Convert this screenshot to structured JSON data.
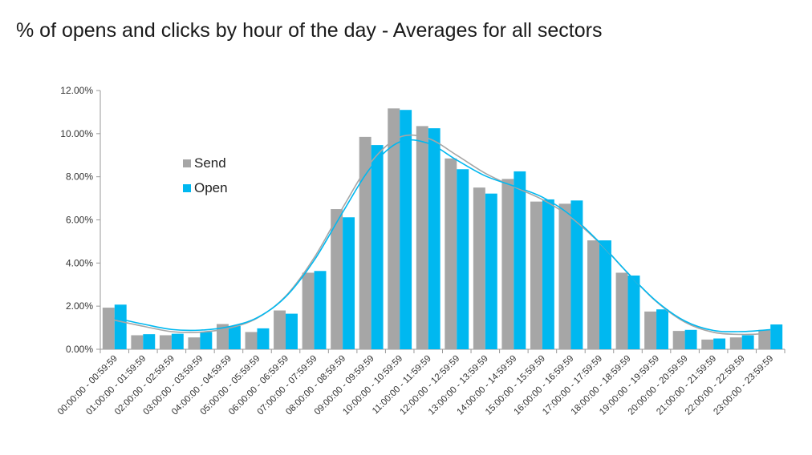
{
  "chart_data": {
    "type": "bar",
    "title": "% of opens and clicks by hour of the day - Averages for all sectors",
    "ylim": [
      0,
      12
    ],
    "yticks": [
      "0.00%",
      "2.00%",
      "4.00%",
      "6.00%",
      "8.00%",
      "10.00%",
      "12.00%"
    ],
    "ytick_values": [
      0,
      2,
      4,
      6,
      8,
      10,
      12
    ],
    "legend_position": "upper-left",
    "grid": false,
    "categories": [
      "00:00:00 - 00:59:59",
      "01:00:00 - 01:59:59",
      "02:00:00 - 02:59:59",
      "03:00:00 - 03:59:59",
      "04:00:00 - 04:59:59",
      "05:00:00 - 05:59:59",
      "06:00:00 - 06:59:59",
      "07:00:00 - 07:59:59",
      "08:00:00 - 08:59:59",
      "09:00:00 - 09:59:59",
      "10:00:00 - 10:59:59",
      "11:00:00 - 11:59:59",
      "12:00:00 - 12:59:59",
      "13:00:00 - 13:59:59",
      "14:00:00 - 14:59:59",
      "15:00:00 - 15:59:59",
      "16:00:00 - 16:59:59",
      "17:00:00 - 17:59:59",
      "18:00:00 - 18:59:59",
      "19:00:00 - 19:59:59",
      "20:00:00 - 20:59:59",
      "21:00:00 - 21:59:59",
      "22:00:00 - 22:59:59",
      "23:00:00 - 23:59:59"
    ],
    "series": [
      {
        "name": "Send",
        "color": "#a6a6a6",
        "values": [
          1.93,
          0.65,
          0.65,
          0.55,
          1.17,
          0.8,
          1.8,
          3.55,
          6.5,
          9.85,
          11.17,
          10.35,
          8.85,
          7.5,
          7.9,
          6.85,
          6.75,
          5.05,
          3.55,
          1.75,
          0.85,
          0.45,
          0.55,
          0.9
        ]
      },
      {
        "name": "Open",
        "color": "#00b8f0",
        "values": [
          2.07,
          0.7,
          0.72,
          0.8,
          1.08,
          0.97,
          1.65,
          3.63,
          6.12,
          9.47,
          11.1,
          10.25,
          8.35,
          7.22,
          8.25,
          6.95,
          6.9,
          5.05,
          3.42,
          1.85,
          0.9,
          0.5,
          0.65,
          1.15
        ]
      }
    ]
  }
}
